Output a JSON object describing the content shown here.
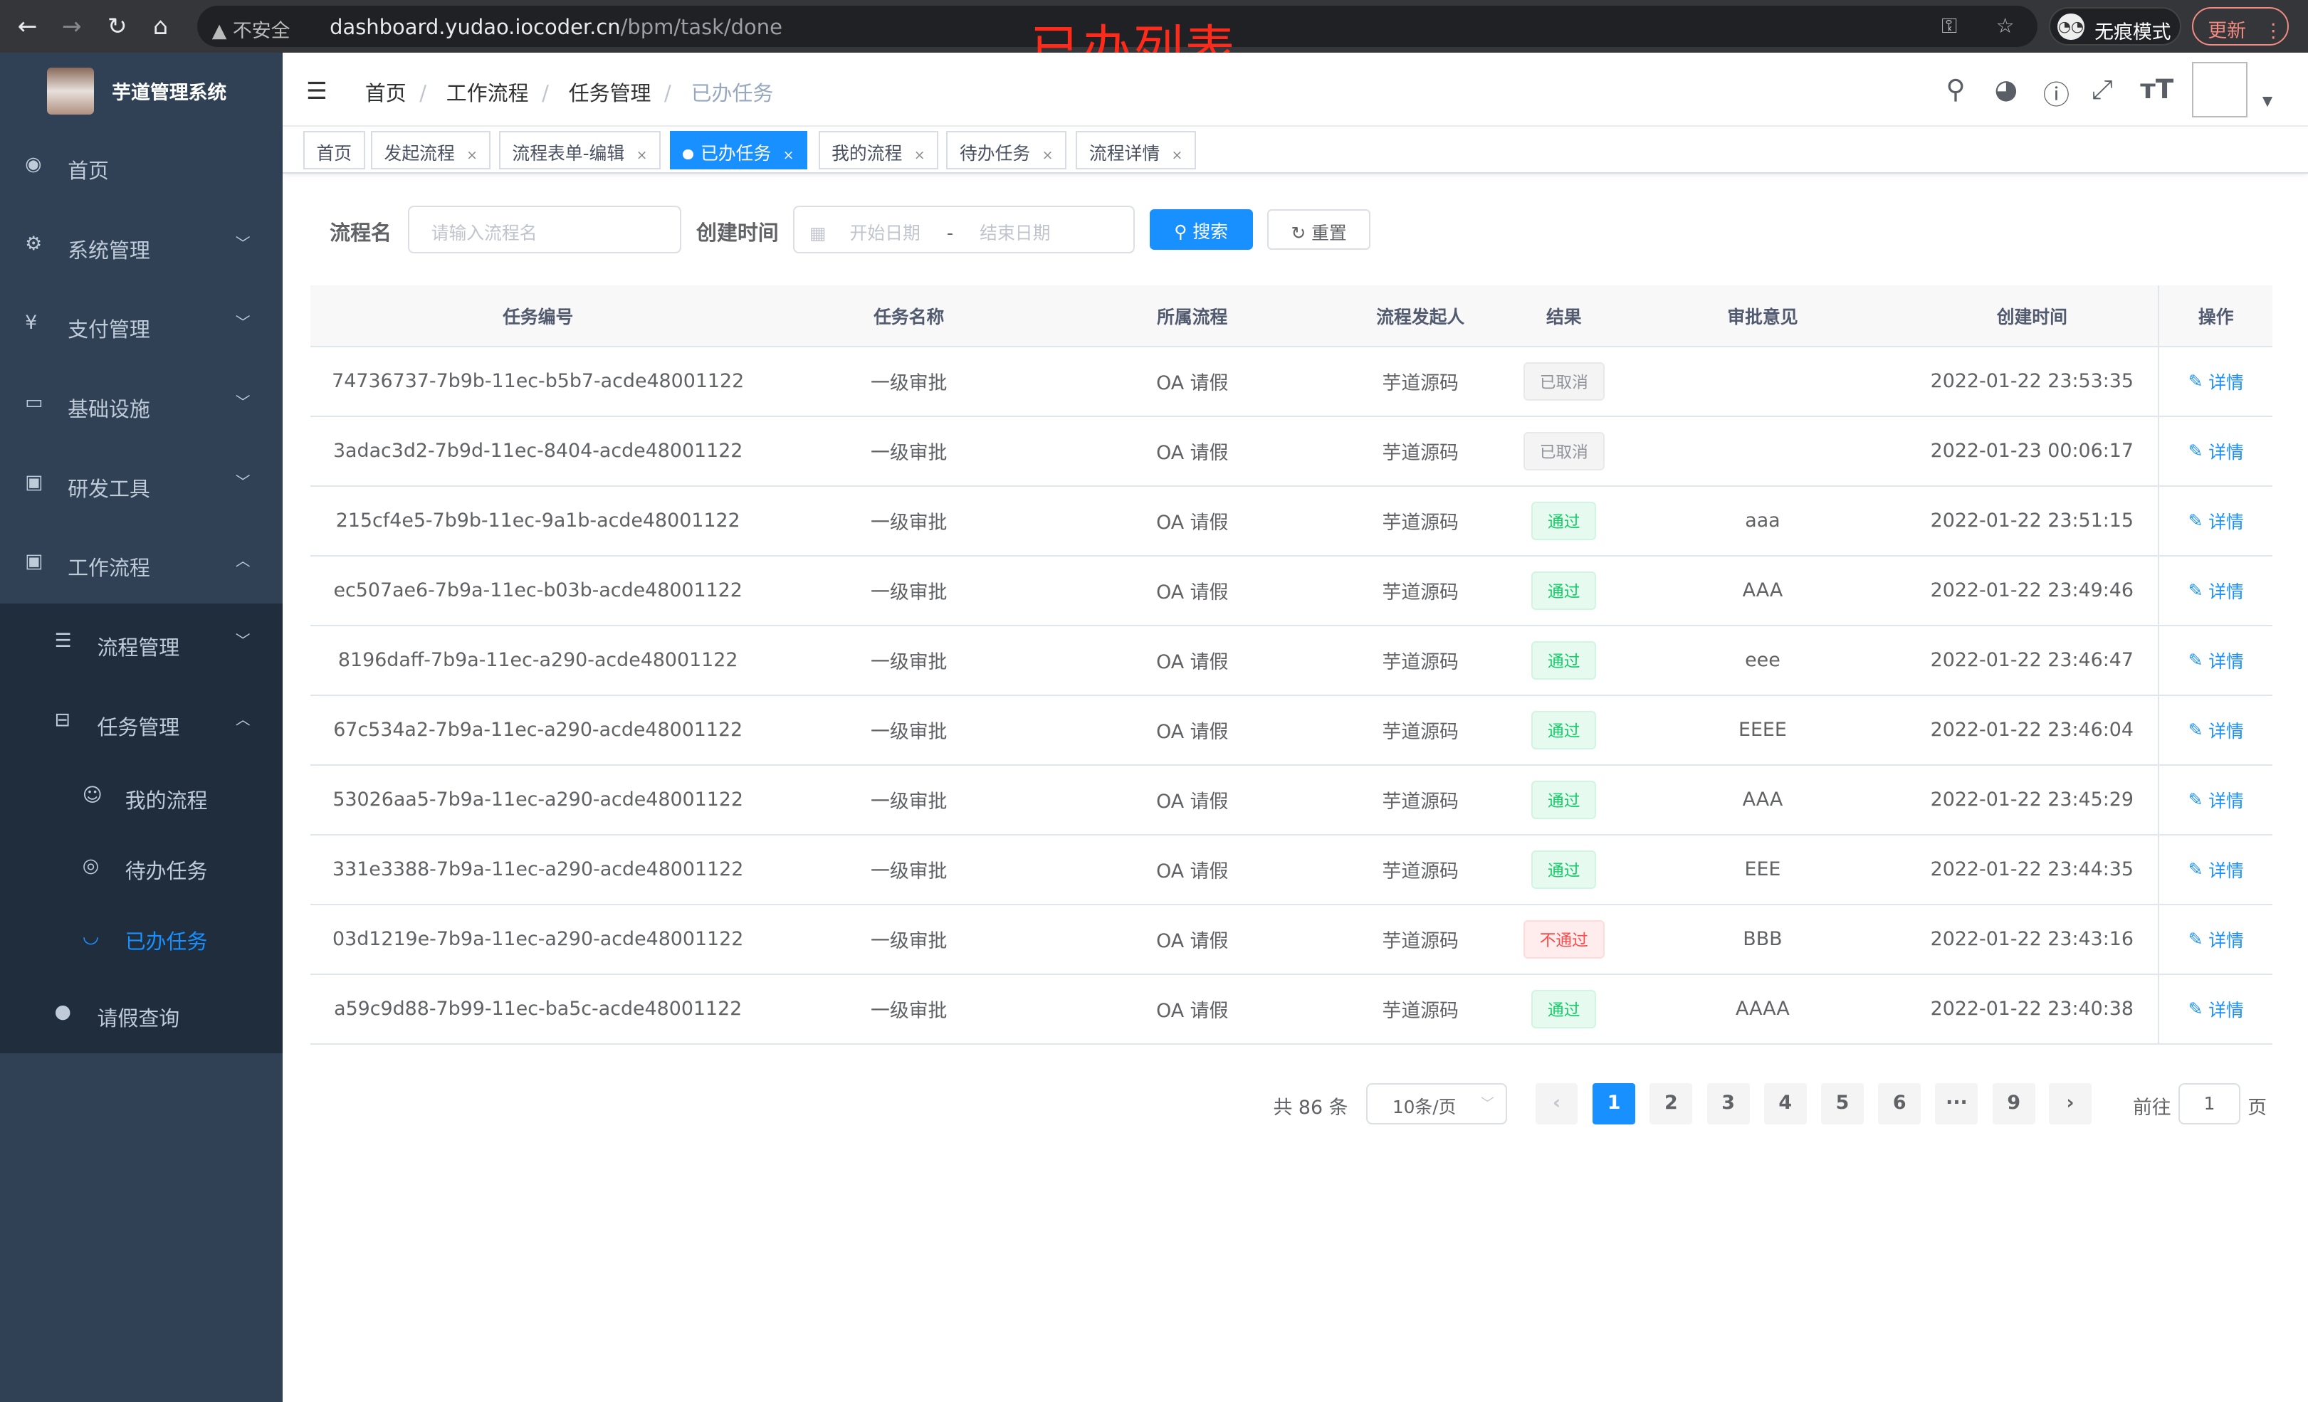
{
  "browser": {
    "insecure": "不安全",
    "url_host": "dashboard.yudao.iocoder.cn",
    "url_path": "/bpm/task/done",
    "incognito": "无痕模式",
    "update": "更新"
  },
  "annotation": "已办列表",
  "sidebar": {
    "title": "芋道管理系统",
    "items": [
      {
        "label": "首页",
        "icon": "dashboard-icon"
      },
      {
        "label": "系统管理",
        "icon": "gear-icon"
      },
      {
        "label": "支付管理",
        "icon": "yen-icon"
      },
      {
        "label": "基础设施",
        "icon": "monitor-icon"
      },
      {
        "label": "研发工具",
        "icon": "toolbox-icon"
      },
      {
        "label": "工作流程",
        "icon": "toolbox-icon"
      }
    ],
    "workflow_sub": [
      {
        "label": "流程管理"
      },
      {
        "label": "任务管理"
      }
    ],
    "task_sub": [
      {
        "label": "我的流程"
      },
      {
        "label": "待办任务"
      },
      {
        "label": "已办任务"
      }
    ],
    "leave": {
      "label": "请假查询"
    }
  },
  "breadcrumb": [
    "首页",
    "工作流程",
    "任务管理",
    "已办任务"
  ],
  "tags": [
    "首页",
    "发起流程",
    "流程表单-编辑",
    "已办任务",
    "我的流程",
    "待办任务",
    "流程详情"
  ],
  "search": {
    "name_label": "流程名",
    "name_placeholder": "请输入流程名",
    "time_label": "创建时间",
    "start_placeholder": "开始日期",
    "range_sep": "-",
    "end_placeholder": "结束日期",
    "search_btn": "搜索",
    "reset_btn": "重置"
  },
  "table": {
    "headers": [
      "任务编号",
      "任务名称",
      "所属流程",
      "流程发起人",
      "结果",
      "审批意见",
      "创建时间",
      "操作"
    ],
    "action": "详情",
    "rows": [
      {
        "id": "74736737-7b9b-11ec-b5b7-acde48001122",
        "name": "一级审批",
        "process": "OA 请假",
        "starter": "芋道源码",
        "result": "已取消",
        "rtype": "info",
        "comment": "",
        "time": "2022-01-22 23:53:35"
      },
      {
        "id": "3adac3d2-7b9d-11ec-8404-acde48001122",
        "name": "一级审批",
        "process": "OA 请假",
        "starter": "芋道源码",
        "result": "已取消",
        "rtype": "info",
        "comment": "",
        "time": "2022-01-23 00:06:17"
      },
      {
        "id": "215cf4e5-7b9b-11ec-9a1b-acde48001122",
        "name": "一级审批",
        "process": "OA 请假",
        "starter": "芋道源码",
        "result": "通过",
        "rtype": "ok",
        "comment": "aaa",
        "time": "2022-01-22 23:51:15"
      },
      {
        "id": "ec507ae6-7b9a-11ec-b03b-acde48001122",
        "name": "一级审批",
        "process": "OA 请假",
        "starter": "芋道源码",
        "result": "通过",
        "rtype": "ok",
        "comment": "AAA",
        "time": "2022-01-22 23:49:46"
      },
      {
        "id": "8196daff-7b9a-11ec-a290-acde48001122",
        "name": "一级审批",
        "process": "OA 请假",
        "starter": "芋道源码",
        "result": "通过",
        "rtype": "ok",
        "comment": "eee",
        "time": "2022-01-22 23:46:47"
      },
      {
        "id": "67c534a2-7b9a-11ec-a290-acde48001122",
        "name": "一级审批",
        "process": "OA 请假",
        "starter": "芋道源码",
        "result": "通过",
        "rtype": "ok",
        "comment": "EEEE",
        "time": "2022-01-22 23:46:04"
      },
      {
        "id": "53026aa5-7b9a-11ec-a290-acde48001122",
        "name": "一级审批",
        "process": "OA 请假",
        "starter": "芋道源码",
        "result": "通过",
        "rtype": "ok",
        "comment": "AAA",
        "time": "2022-01-22 23:45:29"
      },
      {
        "id": "331e3388-7b9a-11ec-a290-acde48001122",
        "name": "一级审批",
        "process": "OA 请假",
        "starter": "芋道源码",
        "result": "通过",
        "rtype": "ok",
        "comment": "EEE",
        "time": "2022-01-22 23:44:35"
      },
      {
        "id": "03d1219e-7b9a-11ec-a290-acde48001122",
        "name": "一级审批",
        "process": "OA 请假",
        "starter": "芋道源码",
        "result": "不通过",
        "rtype": "bad",
        "comment": "BBB",
        "time": "2022-01-22 23:43:16"
      },
      {
        "id": "a59c9d88-7b99-11ec-ba5c-acde48001122",
        "name": "一级审批",
        "process": "OA 请假",
        "starter": "芋道源码",
        "result": "通过",
        "rtype": "ok",
        "comment": "AAAA",
        "time": "2022-01-22 23:40:38"
      }
    ]
  },
  "pagination": {
    "total": "共 86 条",
    "page_size": "10条/页",
    "pages": [
      "1",
      "2",
      "3",
      "4",
      "5",
      "6",
      "···",
      "9"
    ],
    "current": "1",
    "goto_label": "前往",
    "goto_value": "1",
    "page_suffix": "页"
  },
  "colors": {
    "accent": "#1890ff",
    "sidebar": "#304156",
    "annotation": "#ff2a1a"
  }
}
